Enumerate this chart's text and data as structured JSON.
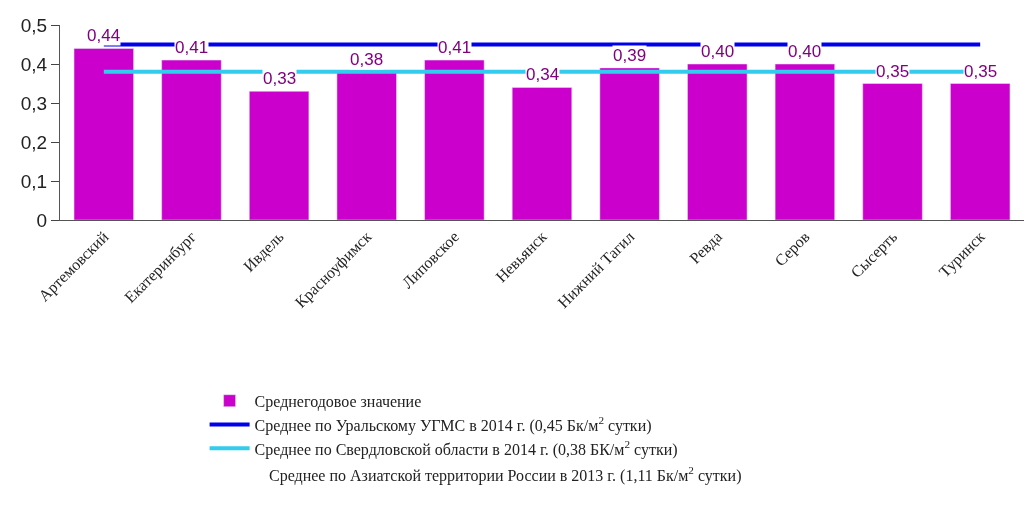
{
  "chart_data": {
    "type": "bar",
    "categories": [
      "Артемовский",
      "Екатеринбург",
      "Ивдель",
      "Красноуфимск",
      "Липовское",
      "Невьянск",
      "Нижний Тагил",
      "Ревда",
      "Серов",
      "Сысерть",
      "Туринск"
    ],
    "series": [
      {
        "name": "Среднегодовое значение",
        "color": "#cc00cc",
        "values": [
          0.44,
          0.41,
          0.33,
          0.38,
          0.41,
          0.34,
          0.39,
          0.4,
          0.4,
          0.35,
          0.35
        ],
        "value_labels": [
          "0,44",
          "0,41",
          "0,33",
          "0,38",
          "0,41",
          "0,34",
          "0,39",
          "0,40",
          "0,40",
          "0,35",
          "0,35"
        ]
      }
    ],
    "ref_lines": [
      {
        "axis": "y",
        "value": 0.45,
        "label": "Среднее по Уральскому УГМС в 2014 г. (0,45 Бк/м$^{2}$ сутки)",
        "color": "#0000ee",
        "line_style": "solid"
      },
      {
        "axis": "y",
        "value": 0.38,
        "label": "Среднее по Свердловской области в 2014 г. (0,38 БК/м$^{2}$ сутки)",
        "color": "#33ccee",
        "line_style": "solid"
      }
    ],
    "annotations": [
      "Среднее по Азиатской территории России в 2013 г. (1,11 Бк/м$^{2}$ сутки)"
    ],
    "ylim": [
      0,
      0.5
    ],
    "yticks": [
      {
        "value": 0,
        "label": "0"
      },
      {
        "value": 0.1,
        "label": "0,1"
      },
      {
        "value": 0.2,
        "label": "0,2"
      },
      {
        "value": 0.3,
        "label": "0,3"
      },
      {
        "value": 0.4,
        "label": "0,4"
      },
      {
        "value": 0.5,
        "label": "0,5"
      }
    ],
    "legend": "bottom"
  }
}
